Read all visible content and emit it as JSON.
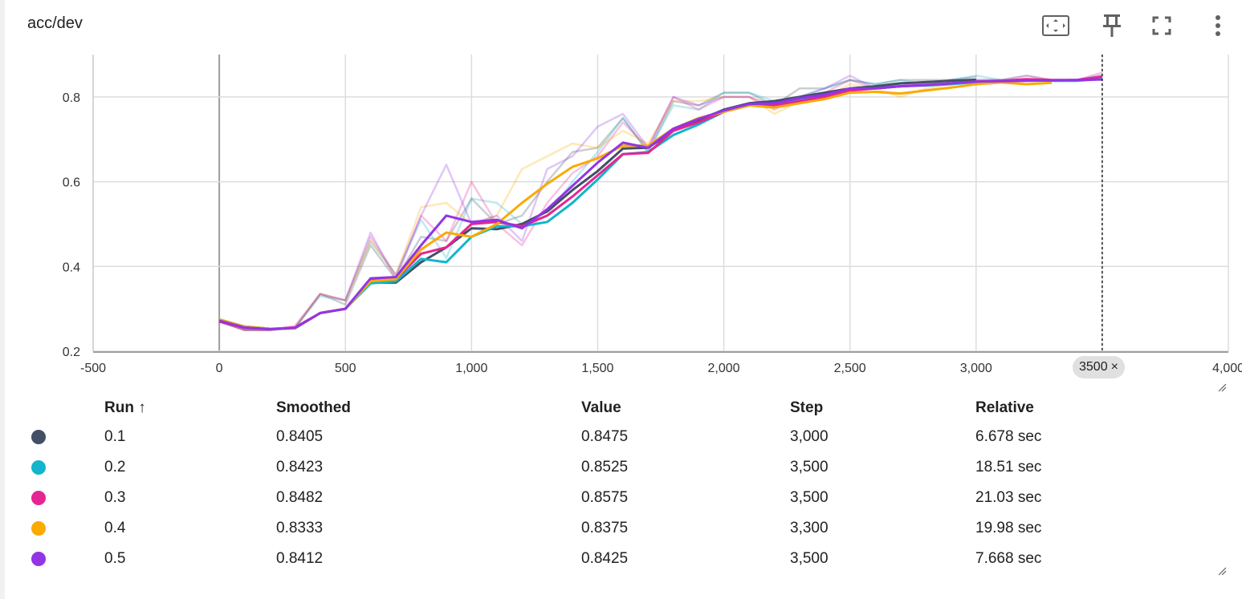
{
  "card": {
    "title": "acc/dev"
  },
  "toolbar": {
    "icons": [
      "fit-domain-icon",
      "pin-icon",
      "fullscreen-icon",
      "more-vert-icon"
    ]
  },
  "step_chip": {
    "label": "3500",
    "close": "×"
  },
  "chart_data": {
    "type": "line",
    "xlim": [
      -500,
      4000
    ],
    "ylim": [
      0.2,
      0.9
    ],
    "xticks": [
      -500,
      0,
      500,
      1000,
      1500,
      2000,
      2500,
      3000,
      3500,
      4000
    ],
    "xtick_labels": [
      "-500",
      "0",
      "500",
      "1,000",
      "1,500",
      "2,000",
      "2,500",
      "3,000",
      "",
      "4,000"
    ],
    "yticks": [
      0.2,
      0.4,
      0.6,
      0.8
    ],
    "ytick_labels": [
      "0.2",
      "0.4",
      "0.6",
      "0.8"
    ],
    "grid": true,
    "cursor_step": 3500,
    "series": [
      {
        "name": "0.1",
        "color": "#425066",
        "x": [
          0,
          100,
          200,
          300,
          400,
          500,
          600,
          700,
          800,
          900,
          1000,
          1100,
          1200,
          1300,
          1400,
          1500,
          1600,
          1700,
          1800,
          1900,
          2000,
          2100,
          2200,
          2300,
          2400,
          2500,
          2600,
          2700,
          2800,
          2900,
          3000
        ],
        "raw": [
          0.27,
          0.25,
          0.25,
          0.255,
          0.335,
          0.31,
          0.45,
          0.37,
          0.47,
          0.46,
          0.56,
          0.5,
          0.52,
          0.6,
          0.67,
          0.68,
          0.75,
          0.67,
          0.79,
          0.78,
          0.81,
          0.81,
          0.78,
          0.82,
          0.82,
          0.84,
          0.83,
          0.84,
          0.84,
          0.84,
          0.8475
        ],
        "smoothed": [
          0.275,
          0.258,
          0.253,
          0.254,
          0.29,
          0.3,
          0.362,
          0.362,
          0.41,
          0.445,
          0.49,
          0.488,
          0.5,
          0.53,
          0.58,
          0.625,
          0.678,
          0.68,
          0.72,
          0.745,
          0.77,
          0.785,
          0.79,
          0.8,
          0.81,
          0.82,
          0.825,
          0.832,
          0.835,
          0.838,
          0.8405
        ]
      },
      {
        "name": "0.2",
        "color": "#12b5cb",
        "x": [
          0,
          100,
          200,
          300,
          400,
          500,
          600,
          700,
          800,
          900,
          1000,
          1100,
          1200,
          1300,
          1400,
          1500,
          1600,
          1700,
          1800,
          1900,
          2000,
          2100,
          2200,
          2300,
          2400,
          2500,
          2600,
          2700,
          2800,
          2900,
          3000,
          3100,
          3200,
          3300,
          3400,
          3500
        ],
        "raw": [
          0.27,
          0.25,
          0.25,
          0.255,
          0.33,
          0.32,
          0.46,
          0.38,
          0.51,
          0.42,
          0.56,
          0.55,
          0.5,
          0.52,
          0.6,
          0.67,
          0.75,
          0.67,
          0.78,
          0.77,
          0.81,
          0.81,
          0.79,
          0.8,
          0.82,
          0.84,
          0.83,
          0.84,
          0.83,
          0.84,
          0.85,
          0.84,
          0.85,
          0.84,
          0.84,
          0.8525
        ],
        "smoothed": [
          0.275,
          0.258,
          0.253,
          0.254,
          0.29,
          0.3,
          0.36,
          0.365,
          0.418,
          0.41,
          0.47,
          0.495,
          0.495,
          0.505,
          0.55,
          0.605,
          0.665,
          0.67,
          0.71,
          0.735,
          0.765,
          0.78,
          0.785,
          0.795,
          0.805,
          0.815,
          0.82,
          0.825,
          0.827,
          0.83,
          0.835,
          0.838,
          0.84,
          0.838,
          0.838,
          0.8423
        ]
      },
      {
        "name": "0.3",
        "color": "#e52592",
        "x": [
          0,
          100,
          200,
          300,
          400,
          500,
          600,
          700,
          800,
          900,
          1000,
          1100,
          1200,
          1300,
          1400,
          1500,
          1600,
          1700,
          1800,
          1900,
          2000,
          2100,
          2200,
          2300,
          2400,
          2500,
          2600,
          2700,
          2800,
          2900,
          3000,
          3100,
          3200,
          3300,
          3400,
          3500
        ],
        "raw": [
          0.27,
          0.25,
          0.25,
          0.26,
          0.335,
          0.32,
          0.47,
          0.38,
          0.52,
          0.46,
          0.6,
          0.5,
          0.45,
          0.55,
          0.62,
          0.66,
          0.74,
          0.68,
          0.8,
          0.77,
          0.8,
          0.8,
          0.77,
          0.8,
          0.81,
          0.84,
          0.82,
          0.83,
          0.83,
          0.84,
          0.84,
          0.84,
          0.85,
          0.84,
          0.84,
          0.8575
        ],
        "smoothed": [
          0.27,
          0.255,
          0.252,
          0.256,
          0.29,
          0.3,
          0.37,
          0.37,
          0.43,
          0.445,
          0.5,
          0.505,
          0.495,
          0.52,
          0.565,
          0.615,
          0.665,
          0.668,
          0.72,
          0.74,
          0.765,
          0.78,
          0.78,
          0.79,
          0.8,
          0.815,
          0.82,
          0.825,
          0.828,
          0.832,
          0.836,
          0.838,
          0.842,
          0.84,
          0.84,
          0.8482
        ]
      },
      {
        "name": "0.4",
        "color": "#f9ab00",
        "x": [
          0,
          100,
          200,
          300,
          400,
          500,
          600,
          700,
          800,
          900,
          1000,
          1100,
          1200,
          1300,
          1400,
          1500,
          1600,
          1700,
          1800,
          1900,
          2000,
          2100,
          2200,
          2300,
          2400,
          2500,
          2600,
          2700,
          2800,
          2900,
          3000,
          3100,
          3200,
          3300
        ],
        "raw": [
          0.27,
          0.25,
          0.25,
          0.255,
          0.335,
          0.32,
          0.46,
          0.38,
          0.54,
          0.55,
          0.5,
          0.52,
          0.63,
          0.66,
          0.69,
          0.68,
          0.72,
          0.69,
          0.79,
          0.79,
          0.8,
          0.8,
          0.76,
          0.79,
          0.8,
          0.83,
          0.82,
          0.8,
          0.82,
          0.83,
          0.84,
          0.84,
          0.83,
          0.8375
        ],
        "smoothed": [
          0.275,
          0.258,
          0.253,
          0.254,
          0.29,
          0.3,
          0.365,
          0.37,
          0.44,
          0.48,
          0.47,
          0.5,
          0.55,
          0.595,
          0.635,
          0.655,
          0.685,
          0.685,
          0.725,
          0.75,
          0.765,
          0.78,
          0.775,
          0.785,
          0.795,
          0.81,
          0.812,
          0.808,
          0.815,
          0.822,
          0.83,
          0.834,
          0.83,
          0.8333
        ]
      },
      {
        "name": "0.5",
        "color": "#9334e6",
        "x": [
          0,
          100,
          200,
          300,
          400,
          500,
          600,
          700,
          800,
          900,
          1000,
          1100,
          1200,
          1300,
          1400,
          1500,
          1600,
          1700,
          1800,
          1900,
          2000,
          2100,
          2200,
          2300,
          2400,
          2500,
          2600,
          2700,
          2800,
          2900,
          3000,
          3100,
          3200,
          3300,
          3400,
          3500
        ],
        "raw": [
          0.27,
          0.25,
          0.25,
          0.255,
          0.335,
          0.32,
          0.48,
          0.37,
          0.52,
          0.64,
          0.5,
          0.52,
          0.46,
          0.63,
          0.66,
          0.73,
          0.76,
          0.68,
          0.8,
          0.78,
          0.8,
          0.8,
          0.78,
          0.8,
          0.82,
          0.85,
          0.82,
          0.83,
          0.83,
          0.84,
          0.84,
          0.84,
          0.84,
          0.84,
          0.84,
          0.8425
        ],
        "smoothed": [
          0.272,
          0.256,
          0.252,
          0.255,
          0.29,
          0.3,
          0.372,
          0.375,
          0.45,
          0.52,
          0.505,
          0.51,
          0.49,
          0.535,
          0.59,
          0.645,
          0.692,
          0.68,
          0.725,
          0.748,
          0.768,
          0.783,
          0.785,
          0.797,
          0.805,
          0.82,
          0.82,
          0.825,
          0.828,
          0.832,
          0.836,
          0.837,
          0.838,
          0.839,
          0.84,
          0.8412
        ]
      }
    ]
  },
  "table": {
    "headers": {
      "run": "Run ↑",
      "smoothed": "Smoothed",
      "value": "Value",
      "step": "Step",
      "relative": "Relative"
    },
    "rows": [
      {
        "color": "#425066",
        "run": "0.1",
        "smoothed": "0.8405",
        "value": "0.8475",
        "step": "3,000",
        "relative": "6.678 sec"
      },
      {
        "color": "#12b5cb",
        "run": "0.2",
        "smoothed": "0.8423",
        "value": "0.8525",
        "step": "3,500",
        "relative": "18.51 sec"
      },
      {
        "color": "#e52592",
        "run": "0.3",
        "smoothed": "0.8482",
        "value": "0.8575",
        "step": "3,500",
        "relative": "21.03 sec"
      },
      {
        "color": "#f9ab00",
        "run": "0.4",
        "smoothed": "0.8333",
        "value": "0.8375",
        "step": "3,300",
        "relative": "19.98 sec"
      },
      {
        "color": "#9334e6",
        "run": "0.5",
        "smoothed": "0.8412",
        "value": "0.8425",
        "step": "3,500",
        "relative": "7.668 sec"
      }
    ]
  }
}
